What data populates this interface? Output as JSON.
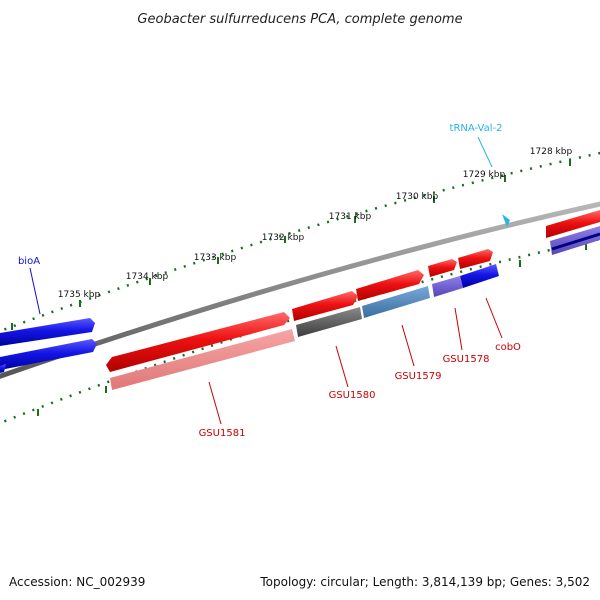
{
  "header": {
    "title": "Geobacter sulfurreducens PCA, complete genome"
  },
  "footer": {
    "accession": "Accession: NC_002939",
    "summary": "Topology: circular; Length: 3,814,139 bp; Genes: 3,502"
  },
  "ruler": {
    "labels": [
      "1728 kbp",
      "1729 kbp",
      "1730 kbp",
      "1731 kbp",
      "1732 kbp",
      "1733 kbp",
      "1734 kbp",
      "1735 kbp"
    ]
  },
  "genes": {
    "bioA": "bioA",
    "trna": "tRNA-Val-2",
    "GSU1581": "GSU1581",
    "GSU1580": "GSU1580",
    "GSU1579": "GSU1579",
    "GSU1578": "GSU1578",
    "cobO": "cobO"
  },
  "colors": {
    "forward": "#ee1111",
    "forward_light": "#f08a8a",
    "blue": "#1515e6",
    "steel": "#4a82b8",
    "slate": "#6a5acd",
    "dark": "#555555",
    "label_red": "#cc0000",
    "label_blue": "#1111cc",
    "label_cyan": "#27b4e6",
    "tick": "#1a6e1a"
  }
}
